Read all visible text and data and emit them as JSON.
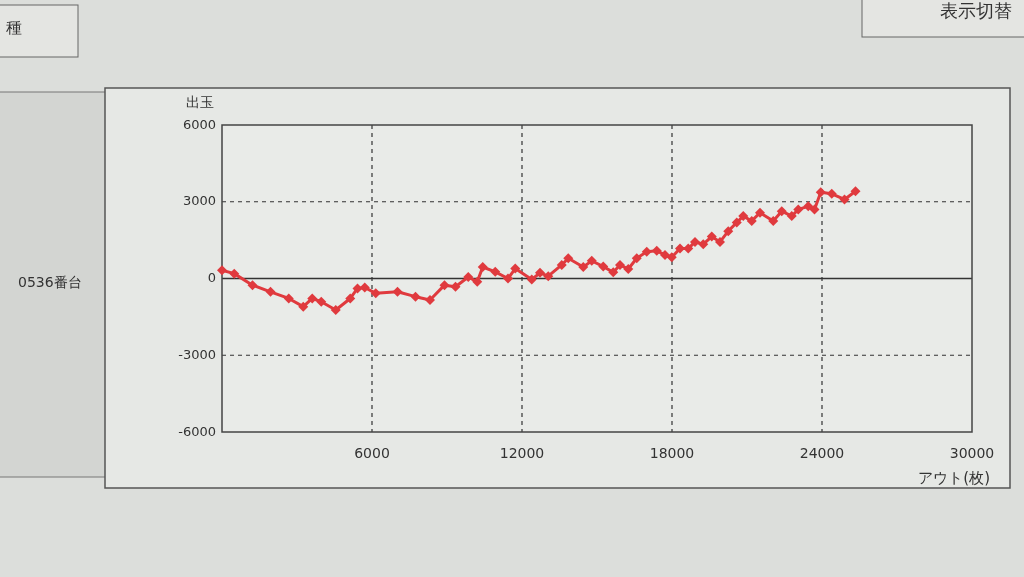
{
  "chart_data": {
    "type": "line",
    "ylabel": "出玉",
    "xlabel": "アウト(枚)",
    "annotations": [
      "0536番台",
      "種",
      "表示切替"
    ],
    "x": [
      0,
      490,
      1220,
      1940,
      2670,
      3250,
      3610,
      3970,
      4550,
      5130,
      5420,
      5710,
      6150,
      7020,
      7740,
      8320,
      8900,
      9340,
      9850,
      10210,
      10430,
      10930,
      11440,
      11730,
      12390,
      12720,
      13050,
      13590,
      13850,
      14450,
      14790,
      15250,
      15650,
      15920,
      16250,
      16590,
      16990,
      17390,
      17720,
      17990,
      18320,
      18650,
      18920,
      19250,
      19590,
      19920,
      20250,
      20590,
      20850,
      21190,
      21520,
      22050,
      22390,
      22790,
      23050,
      23450,
      23700,
      23950,
      24390,
      24900,
      25340
    ],
    "series": [
      {
        "color": "#e03a3e",
        "values": [
          320,
          190,
          -260,
          -520,
          -780,
          -1100,
          -780,
          -910,
          -1230,
          -780,
          -390,
          -350,
          -580,
          -520,
          -710,
          -840,
          -260,
          -320,
          60,
          -130,
          450,
          260,
          0,
          390,
          -40,
          220,
          90,
          530,
          790,
          450,
          690,
          470,
          240,
          530,
          370,
          790,
          1050,
          1080,
          920,
          830,
          1170,
          1170,
          1430,
          1340,
          1640,
          1430,
          1850,
          2190,
          2440,
          2250,
          2570,
          2250,
          2630,
          2440,
          2700,
          2820,
          2700,
          3370,
          3310,
          3090,
          3410
        ]
      }
    ],
    "xlim": [
      0,
      30000
    ],
    "xticks": [
      {
        "value": 0,
        "label": null
      },
      6000,
      12000,
      18000,
      24000,
      30000
    ],
    "ylim": [
      -6000,
      6000
    ],
    "yticks": [
      -6000,
      -3000,
      0,
      3000,
      6000
    ],
    "ref_lines": [
      {
        "axis": "y",
        "value": 0,
        "line_style": "solid",
        "color": "#333333"
      }
    ],
    "grid": true,
    "marker": "diamond",
    "line_style": "solid"
  }
}
